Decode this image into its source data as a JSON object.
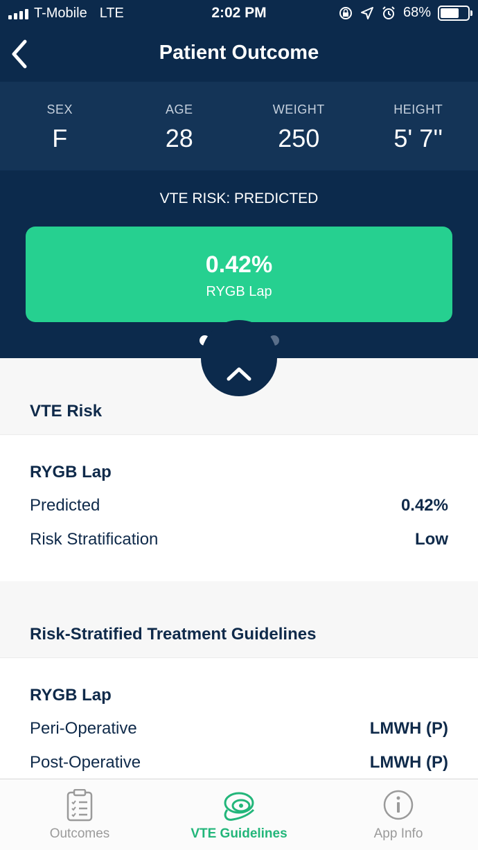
{
  "status_bar": {
    "carrier": "T-Mobile",
    "network": "LTE",
    "time": "2:02 PM",
    "battery": "68%",
    "battery_level": 0.68
  },
  "header": {
    "title": "Patient Outcome"
  },
  "patient": {
    "sex_label": "SEX",
    "sex": "F",
    "age_label": "AGE",
    "age": "28",
    "weight_label": "WEIGHT",
    "weight": "250",
    "height_label": "HEIGHT",
    "height": "5' 7''"
  },
  "risk_banner": {
    "title": "VTE RISK: PREDICTED",
    "value": "0.42%",
    "procedure": "RYGB Lap",
    "color": "#26d090",
    "page_count": 5,
    "active_page": 1
  },
  "vte_risk": {
    "heading": "VTE Risk",
    "procedure": "RYGB Lap",
    "rows": [
      {
        "label": "Predicted",
        "value": "0.42%"
      },
      {
        "label": "Risk Stratification",
        "value": "Low"
      }
    ]
  },
  "guidelines": {
    "heading": "Risk-Stratified Treatment Guidelines",
    "procedure": "RYGB Lap",
    "rows": [
      {
        "label": "Peri-Operative",
        "value": "LMWH (P)"
      },
      {
        "label": "Post-Operative",
        "value": "LMWH (P)"
      }
    ]
  },
  "tabs": [
    {
      "label": "Outcomes",
      "icon": "clipboard-checklist-icon",
      "active": false
    },
    {
      "label": "VTE Guidelines",
      "icon": "vte-guidelines-icon",
      "active": true
    },
    {
      "label": "App Info",
      "icon": "info-icon",
      "active": false
    }
  ],
  "colors": {
    "navy": "#0c2a4c",
    "navy_light": "#143457",
    "green": "#26d090",
    "tab_active": "#22b67a"
  }
}
